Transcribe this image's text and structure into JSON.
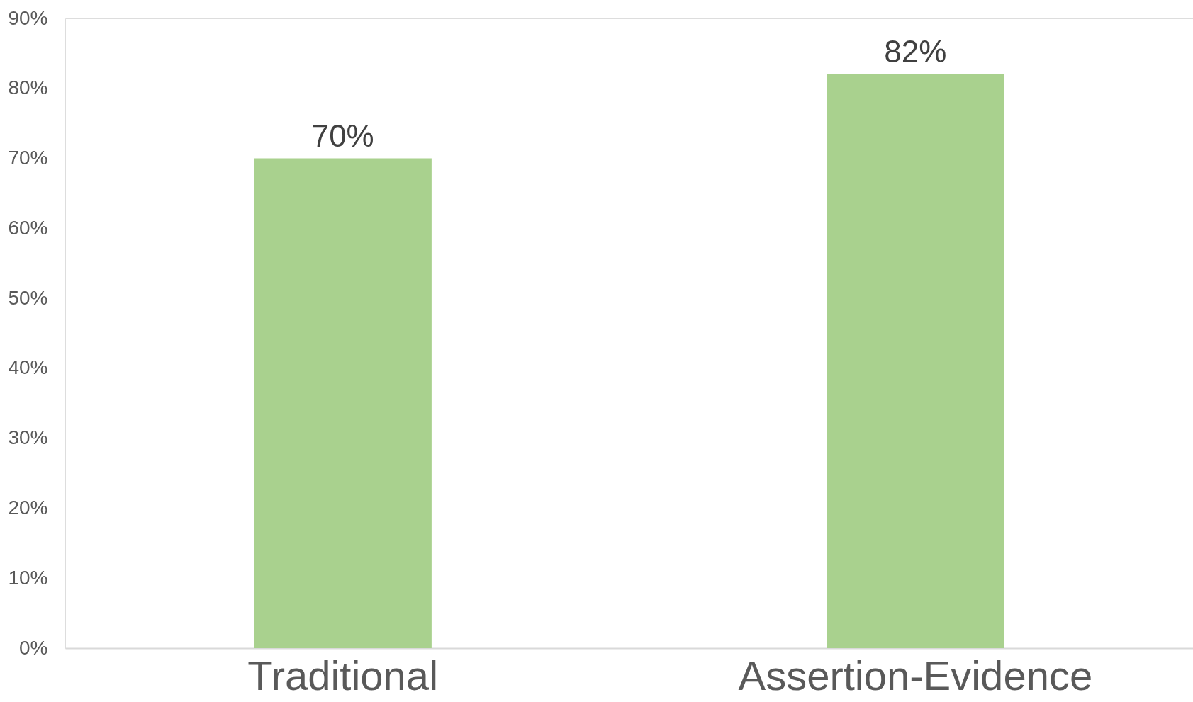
{
  "chart_data": {
    "type": "bar",
    "categories": [
      "Traditional",
      "Assertion-Evidence"
    ],
    "values": [
      70,
      82
    ],
    "value_labels": [
      "70%",
      "82%"
    ],
    "color": "#a9d18e",
    "ylim": [
      0,
      90
    ],
    "yticks": [
      {
        "value": 0,
        "label": "0%"
      },
      {
        "value": 10,
        "label": "10%"
      },
      {
        "value": 20,
        "label": "20%"
      },
      {
        "value": 30,
        "label": "30%"
      },
      {
        "value": 40,
        "label": "40%"
      },
      {
        "value": 50,
        "label": "50%"
      },
      {
        "value": 60,
        "label": "60%"
      },
      {
        "value": 70,
        "label": "70%"
      },
      {
        "value": 80,
        "label": "80%"
      },
      {
        "value": 90,
        "label": "90%"
      }
    ],
    "grid": false
  }
}
